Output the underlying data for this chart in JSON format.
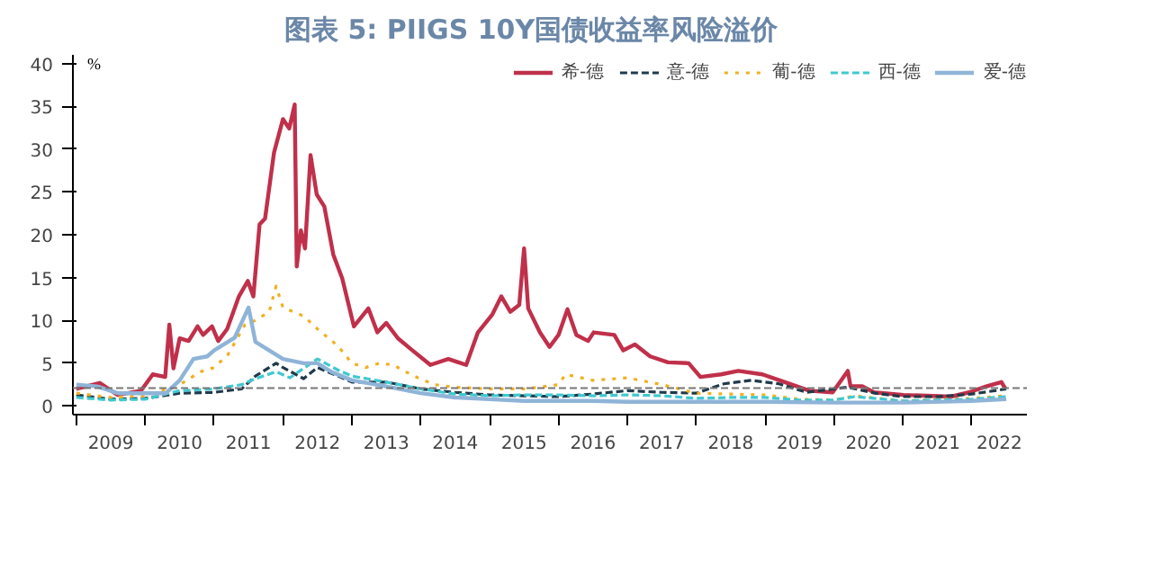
{
  "chart_data": {
    "type": "line",
    "title": "图表 5:     PIIGS 10Y国债收益率风险溢价",
    "ylabel": "%",
    "xlim": [
      2008.95,
      2022.8
    ],
    "ylim": [
      -1,
      41
    ],
    "yticks": [
      0,
      5,
      10,
      15,
      20,
      25,
      30,
      35,
      40
    ],
    "xticks": [
      {
        "value": 2009,
        "label": null
      },
      {
        "value": 2010,
        "label": null
      },
      {
        "value": 2011,
        "label": null
      },
      {
        "value": 2012,
        "label": null
      },
      {
        "value": 2013,
        "label": null
      },
      {
        "value": 2014,
        "label": null
      },
      {
        "value": 2015,
        "label": null
      },
      {
        "value": 2016,
        "label": null
      },
      {
        "value": 2017,
        "label": null
      },
      {
        "value": 2018,
        "label": null
      },
      {
        "value": 2019,
        "label": null
      },
      {
        "value": 2020,
        "label": null
      },
      {
        "value": 2021,
        "label": null
      },
      {
        "value": 2022,
        "label": null
      },
      {
        "value": 2009.5,
        "label": "2009"
      },
      {
        "value": 2010.5,
        "label": "2010"
      },
      {
        "value": 2011.5,
        "label": "2011"
      },
      {
        "value": 2012.5,
        "label": "2012"
      },
      {
        "value": 2013.5,
        "label": "2013"
      },
      {
        "value": 2014.5,
        "label": "2014"
      },
      {
        "value": 2015.5,
        "label": "2015"
      },
      {
        "value": 2016.5,
        "label": "2016"
      },
      {
        "value": 2017.5,
        "label": "2017"
      },
      {
        "value": 2018.5,
        "label": "2018"
      },
      {
        "value": 2019.5,
        "label": "2019"
      },
      {
        "value": 2020.5,
        "label": "2020"
      },
      {
        "value": 2021.5,
        "label": "2021"
      },
      {
        "value": 2022.4,
        "label": "2022"
      }
    ],
    "grid": false,
    "legend": "top right",
    "ref_lines": [
      {
        "axis": "y",
        "value": 2.1,
        "color": "#777777",
        "line_style": "dashed"
      }
    ],
    "series": [
      {
        "name": "希-德",
        "color": "#c0304a",
        "line_style": "solid",
        "x": [
          2009.0,
          2009.34,
          2009.6,
          2009.94,
          2010.11,
          2010.29,
          2010.35,
          2010.41,
          2010.5,
          2010.63,
          2010.76,
          2010.84,
          2010.97,
          2011.06,
          2011.19,
          2011.36,
          2011.49,
          2011.57,
          2011.66,
          2011.74,
          2011.87,
          2012.0,
          2012.09,
          2012.17,
          2012.2,
          2012.26,
          2012.32,
          2012.4,
          2012.49,
          2012.6,
          2012.73,
          2012.86,
          2013.03,
          2013.24,
          2013.37,
          2013.5,
          2013.67,
          2013.88,
          2014.14,
          2014.4,
          2014.66,
          2014.83,
          2015.04,
          2015.17,
          2015.3,
          2015.43,
          2015.5,
          2015.56,
          2015.73,
          2015.87,
          2016.0,
          2016.13,
          2016.26,
          2016.43,
          2016.51,
          2016.81,
          2016.94,
          2017.11,
          2017.33,
          2017.59,
          2017.89,
          2018.06,
          2018.36,
          2018.61,
          2018.96,
          2019.21,
          2019.64,
          2019.98,
          2020.2,
          2020.24,
          2020.41,
          2020.58,
          2021.01,
          2021.7,
          2021.96,
          2022.21,
          2022.43,
          2022.49
        ],
        "values": [
          2.0,
          2.7,
          1.3,
          1.8,
          3.7,
          3.4,
          9.5,
          4.4,
          7.9,
          7.6,
          9.3,
          8.3,
          9.3,
          7.6,
          9.0,
          12.8,
          14.6,
          12.8,
          21.2,
          21.9,
          29.6,
          33.5,
          32.4,
          35.2,
          16.3,
          20.5,
          18.4,
          29.3,
          24.7,
          23.3,
          17.7,
          14.9,
          9.3,
          11.4,
          8.6,
          9.7,
          7.9,
          6.5,
          4.8,
          5.5,
          4.8,
          8.6,
          10.7,
          12.8,
          11.0,
          11.8,
          18.4,
          11.4,
          8.6,
          6.9,
          8.3,
          11.3,
          8.3,
          7.6,
          8.6,
          8.3,
          6.5,
          7.2,
          5.8,
          5.1,
          5.0,
          3.4,
          3.7,
          4.1,
          3.7,
          3.0,
          1.8,
          1.6,
          4.1,
          2.3,
          2.3,
          1.6,
          1.3,
          1.1,
          1.6,
          2.3,
          2.8,
          2.0
        ]
      },
      {
        "name": "意-德",
        "color": "#1f3a4a",
        "line_style": "dashed",
        "x": [
          2009.0,
          2009.5,
          2010.0,
          2010.5,
          2011.0,
          2011.4,
          2011.6,
          2011.9,
          2012.0,
          2012.3,
          2012.5,
          2012.8,
          2013.0,
          2013.5,
          2014.0,
          2014.5,
          2015.0,
          2015.5,
          2016.0,
          2016.5,
          2017.0,
          2017.5,
          2018.0,
          2018.4,
          2018.8,
          2019.2,
          2019.6,
          2020.2,
          2020.6,
          2021.0,
          2021.5,
          2022.0,
          2022.5
        ],
        "values": [
          1.3,
          0.8,
          0.9,
          1.5,
          1.6,
          2.0,
          3.5,
          5.0,
          4.5,
          3.2,
          4.5,
          3.5,
          2.8,
          2.8,
          2.0,
          1.6,
          1.3,
          1.2,
          1.1,
          1.4,
          1.8,
          1.6,
          1.5,
          2.6,
          3.0,
          2.6,
          1.6,
          2.2,
          1.5,
          1.1,
          1.1,
          1.4,
          2.0
        ]
      },
      {
        "name": "葡-德",
        "color": "#f0b020",
        "line_style": "dotted",
        "x": [
          2009.0,
          2009.5,
          2010.0,
          2010.5,
          2010.8,
          2011.0,
          2011.2,
          2011.45,
          2011.6,
          2011.8,
          2011.9,
          2012.0,
          2012.3,
          2012.5,
          2012.8,
          2013.0,
          2013.2,
          2013.4,
          2013.6,
          2013.9,
          2014.2,
          2014.5,
          2015.0,
          2015.5,
          2016.0,
          2016.1,
          2016.5,
          2017.0,
          2017.5,
          2018.0,
          2018.5,
          2019.0,
          2019.5,
          2020.0,
          2020.3,
          2021.0,
          2022.0,
          2022.5
        ],
        "values": [
          1.5,
          1.0,
          1.2,
          2.5,
          4.0,
          4.5,
          6.0,
          9.5,
          10.0,
          11.0,
          14.0,
          11.5,
          10.5,
          9.0,
          7.0,
          5.0,
          4.5,
          5.0,
          4.8,
          3.5,
          2.5,
          2.2,
          2.0,
          2.0,
          2.5,
          3.7,
          3.0,
          3.3,
          2.5,
          1.5,
          1.4,
          1.3,
          0.8,
          0.7,
          1.2,
          0.6,
          0.9,
          1.2
        ]
      },
      {
        "name": "西-德",
        "color": "#40c8d0",
        "line_style": "dashed",
        "x": [
          2009.0,
          2009.5,
          2010.0,
          2010.5,
          2011.0,
          2011.4,
          2011.6,
          2011.9,
          2012.1,
          2012.5,
          2012.8,
          2013.0,
          2013.5,
          2014.0,
          2014.5,
          2015.0,
          2015.5,
          2016.0,
          2016.5,
          2017.0,
          2017.5,
          2018.0,
          2018.5,
          2019.0,
          2019.5,
          2020.0,
          2020.3,
          2021.0,
          2022.0,
          2022.5
        ],
        "values": [
          1.0,
          0.7,
          0.8,
          1.8,
          2.0,
          2.5,
          3.2,
          4.0,
          3.3,
          5.5,
          4.2,
          3.5,
          2.8,
          2.0,
          1.4,
          1.2,
          1.3,
          1.3,
          1.2,
          1.3,
          1.2,
          0.9,
          1.0,
          1.0,
          0.7,
          0.7,
          1.1,
          0.6,
          0.8,
          1.1
        ]
      },
      {
        "name": "爱-德",
        "color": "#8fb4d8",
        "line_style": "solid",
        "x": [
          2009.0,
          2009.3,
          2009.6,
          2010.0,
          2010.3,
          2010.5,
          2010.7,
          2010.9,
          2011.0,
          2011.3,
          2011.5,
          2011.6,
          2011.8,
          2012.0,
          2012.3,
          2012.5,
          2012.7,
          2013.0,
          2013.5,
          2014.0,
          2014.5,
          2015.0,
          2015.5,
          2016.0,
          2016.5,
          2017.0,
          2018.0,
          2019.0,
          2020.0,
          2021.0,
          2022.0,
          2022.5
        ],
        "values": [
          2.5,
          2.3,
          1.5,
          1.5,
          1.5,
          3.0,
          5.5,
          5.8,
          6.5,
          8.0,
          11.5,
          7.5,
          6.5,
          5.5,
          5.0,
          5.0,
          4.0,
          3.0,
          2.3,
          1.5,
          1.0,
          0.8,
          0.6,
          0.6,
          0.6,
          0.5,
          0.5,
          0.5,
          0.4,
          0.4,
          0.6,
          0.8
        ]
      }
    ]
  }
}
